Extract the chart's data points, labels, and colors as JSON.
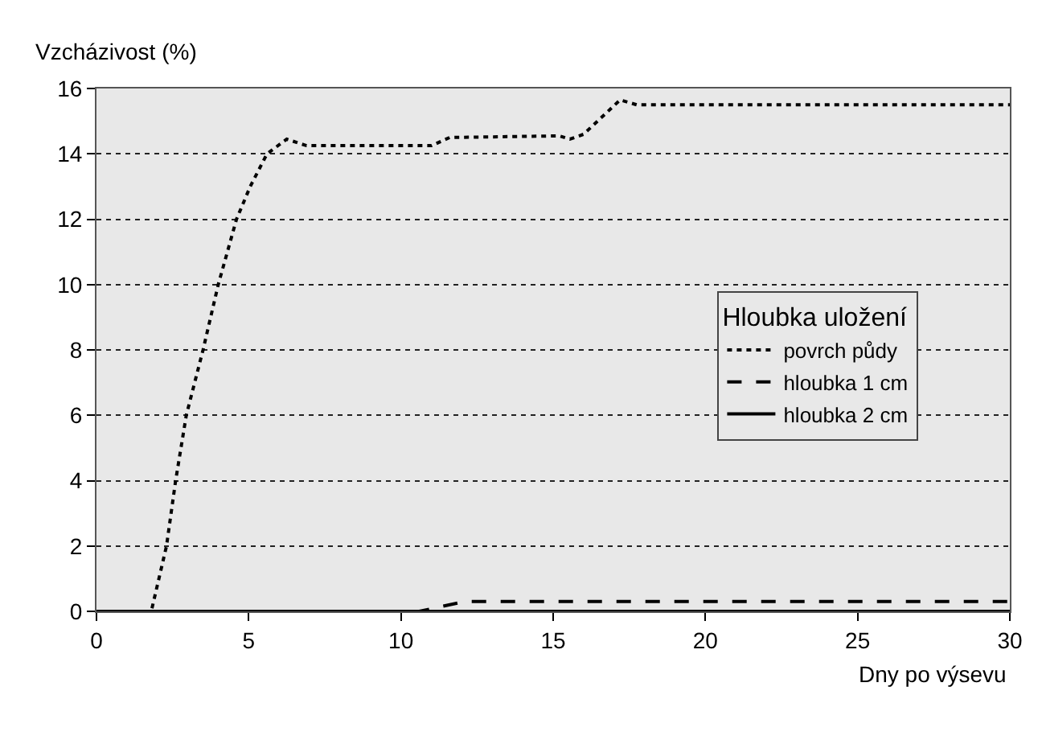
{
  "chart_data": {
    "type": "line",
    "xlabel": "Dny po výsevu",
    "ylabel": "Vzcházivost (%)",
    "legend_title": "Hloubka uložení",
    "xlim": [
      0,
      30
    ],
    "xticks": [
      0,
      5,
      10,
      15,
      20,
      25,
      30
    ],
    "ylim": [
      0,
      16
    ],
    "yticks": [
      0,
      2,
      4,
      6,
      8,
      10,
      12,
      14,
      16
    ],
    "grid": "y",
    "legend": "right",
    "marker": "none",
    "series": [
      {
        "name": "povrch půdy",
        "color": "#000000",
        "line_style": "dotted",
        "x": [
          0,
          1.8,
          2.3,
          2.6,
          2.95,
          3.5,
          4.0,
          4.6,
          5.05,
          5.6,
          6.25,
          6.9,
          11.0,
          11.6,
          15.2,
          15.55,
          16.0,
          17.2,
          17.75,
          30
        ],
        "values": [
          0,
          0,
          2,
          4,
          6,
          8,
          10,
          12,
          13,
          14,
          14.45,
          14.25,
          14.25,
          14.5,
          14.55,
          14.45,
          14.6,
          15.65,
          15.5,
          15.5
        ]
      },
      {
        "name": "hloubka 1 cm",
        "color": "#000000",
        "line_style": "dashed",
        "x": [
          0,
          10.6,
          12.1,
          30
        ],
        "values": [
          0,
          0,
          0.3,
          0.3
        ]
      },
      {
        "name": "hloubka 2 cm",
        "color": "#000000",
        "line_style": "solid",
        "x": [
          0,
          30
        ],
        "values": [
          0,
          0
        ]
      }
    ]
  }
}
